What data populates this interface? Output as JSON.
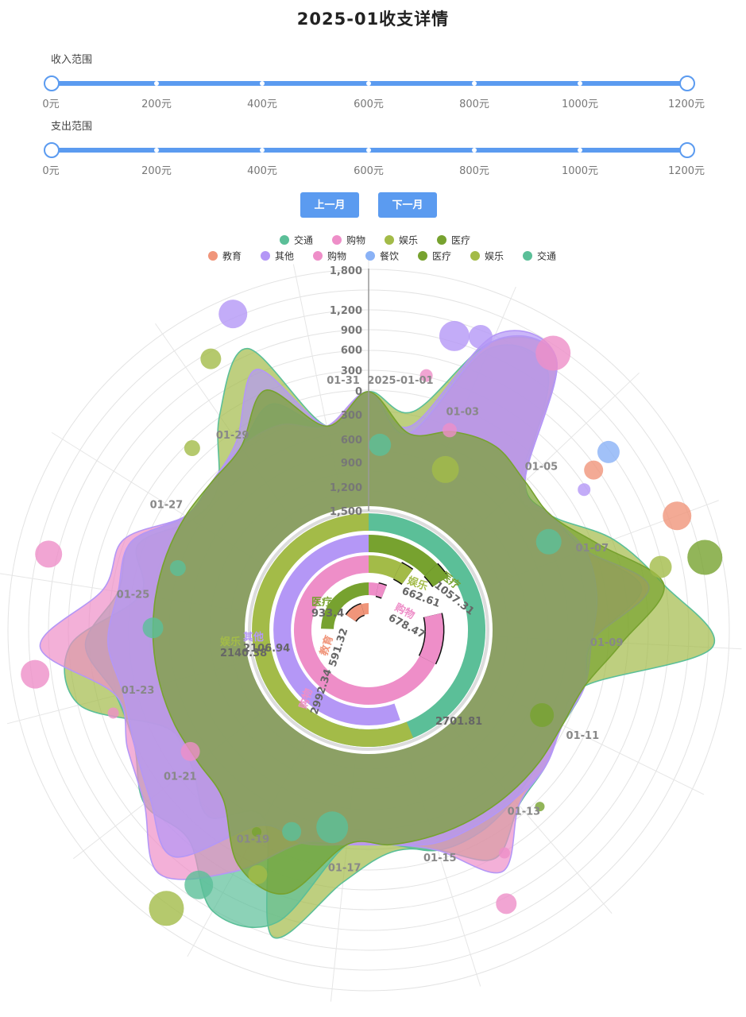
{
  "page": {
    "title": "2025-01收支详情"
  },
  "income_slider": {
    "label": "收入范围",
    "min": 0,
    "max": 1200,
    "low": 0,
    "high": 1200,
    "ticks": [
      "0元",
      "200元",
      "400元",
      "600元",
      "800元",
      "1000元",
      "1200元"
    ]
  },
  "expense_slider": {
    "label": "支出范围",
    "min": 0,
    "max": 1200,
    "low": 0,
    "high": 1200,
    "ticks": [
      "0元",
      "200元",
      "400元",
      "600元",
      "800元",
      "1000元",
      "1200元"
    ]
  },
  "buttons": {
    "prev": "上一月",
    "next": "下一月"
  },
  "colors": {
    "交通": "#5bbf98",
    "购物": "#ee8ec8",
    "娱乐": "#a3bb48",
    "医疗": "#77a22f",
    "教育": "#f0957a",
    "其他": "#b497f6",
    "餐饮": "#8ab2f6",
    "accent": "#5b9bf0"
  },
  "chart_data": {
    "type": "polar-composite",
    "legend_top": [
      "交通",
      "购物",
      "娱乐",
      "医疗"
    ],
    "legend_bottom": [
      "教育",
      "其他",
      "购物",
      "餐饮",
      "医疗",
      "娱乐",
      "交通"
    ],
    "angle_axis": {
      "labels": [
        "2025-01-01",
        "01-03",
        "01-05",
        "01-07",
        "01-09",
        "01-11",
        "01-13",
        "01-15",
        "01-17",
        "01-19",
        "01-21",
        "01-23",
        "01-25",
        "01-27",
        "01-29",
        "01-31"
      ]
    },
    "radial_axis_outer": {
      "ticks": [
        "0",
        "300",
        "600",
        "900",
        "1,200",
        "1,800"
      ]
    },
    "radial_axis_inner": {
      "ticks": [
        "300",
        "600",
        "900",
        "1,200",
        "1,500"
      ]
    },
    "bar_rings": [
      {
        "name": "交通",
        "value": "2701.81"
      },
      {
        "name": "娱乐",
        "value": "2140.38"
      },
      {
        "name": "其他",
        "value": "2106.94"
      },
      {
        "name": "购物",
        "value": "2992.34"
      },
      {
        "name": "医疗",
        "value": "933.4"
      },
      {
        "name": "教育",
        "value": "591.32"
      }
    ],
    "bar_rings_small": [
      {
        "name": "医疗",
        "value": "1057.31"
      },
      {
        "name": "娱乐",
        "value": "662.61"
      },
      {
        "name": "购物",
        "value": "678.47"
      }
    ],
    "bubbles": [
      {
        "series": "其他",
        "angle_index": 1.4,
        "value": 900,
        "size": 38
      },
      {
        "series": "其他",
        "angle_index": 1.8,
        "value": 1000,
        "size": 30
      },
      {
        "series": "购物",
        "angle_index": 2.9,
        "value": 1250,
        "size": 44
      },
      {
        "series": "购物",
        "angle_index": 1.1,
        "value": 300,
        "size": 16
      },
      {
        "series": "购物",
        "angle_index": 1.9,
        "value": -300,
        "size": 18
      },
      {
        "series": "娱乐",
        "angle_index": 2.2,
        "value": -800,
        "size": 34
      },
      {
        "series": "餐饮",
        "angle_index": 4.6,
        "value": 800,
        "size": 28
      },
      {
        "series": "教育",
        "angle_index": 4.7,
        "value": 500,
        "size": 24
      },
      {
        "series": "其他",
        "angle_index": 4.9,
        "value": 250,
        "size": 16
      },
      {
        "series": "教育",
        "angle_index": 6.0,
        "value": 1200,
        "size": 36
      },
      {
        "series": "医疗",
        "angle_index": 6.7,
        "value": 1400,
        "size": 44
      },
      {
        "series": "娱乐",
        "angle_index": 6.7,
        "value": 800,
        "size": 28
      },
      {
        "series": "交通",
        "angle_index": 5.5,
        "value": -500,
        "size": 32
      },
      {
        "series": "医疗",
        "angle_index": 10.0,
        "value": -600,
        "size": 30
      },
      {
        "series": "医疗",
        "angle_index": 11.7,
        "value": 100,
        "size": 12
      },
      {
        "series": "购物",
        "angle_index": 12.8,
        "value": 300,
        "size": 14
      },
      {
        "series": "购物",
        "angle_index": 13.2,
        "value": 900,
        "size": 26
      },
      {
        "series": "交通",
        "angle_index": 18.4,
        "value": 900,
        "size": 36
      },
      {
        "series": "娱乐",
        "angle_index": 18.6,
        "value": 1400,
        "size": 44
      },
      {
        "series": "娱乐",
        "angle_index": 17.6,
        "value": 400,
        "size": 24
      },
      {
        "series": "交通",
        "angle_index": 16.4,
        "value": -500,
        "size": 40
      },
      {
        "series": "交通",
        "angle_index": 17.3,
        "value": -300,
        "size": 24
      },
      {
        "series": "医疗",
        "angle_index": 18.0,
        "value": -100,
        "size": 12
      },
      {
        "series": "购物",
        "angle_index": 20.3,
        "value": -300,
        "size": 24
      },
      {
        "series": "购物",
        "angle_index": 21.7,
        "value": 400,
        "size": 14
      },
      {
        "series": "购物",
        "angle_index": 22.6,
        "value": 1300,
        "size": 36
      },
      {
        "series": "购物",
        "angle_index": 24.4,
        "value": 1200,
        "size": 34
      },
      {
        "series": "交通",
        "angle_index": 23.3,
        "value": -300,
        "size": 26
      },
      {
        "series": "交通",
        "angle_index": 24.8,
        "value": -500,
        "size": 20
      },
      {
        "series": "娱乐",
        "angle_index": 27.2,
        "value": 200,
        "size": 20
      },
      {
        "series": "娱乐",
        "angle_index": 28.4,
        "value": 1000,
        "size": 26
      },
      {
        "series": "其他",
        "angle_index": 29.0,
        "value": 1400,
        "size": 36
      },
      {
        "series": "交通",
        "angle_index": 31.3,
        "value": -700,
        "size": 28
      }
    ]
  }
}
